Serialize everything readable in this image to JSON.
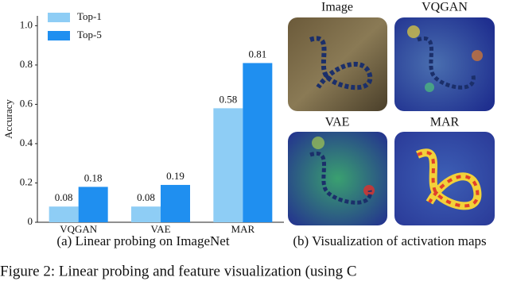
{
  "chart_data": {
    "type": "bar",
    "ylabel": "Accuracy",
    "categories": [
      "VQGAN",
      "VAE",
      "MAR"
    ],
    "series": [
      {
        "name": "Top-1",
        "color": "#8ecdf5",
        "values": [
          0.08,
          0.08,
          0.58
        ]
      },
      {
        "name": "Top-5",
        "color": "#1f8ff0",
        "values": [
          0.18,
          0.19,
          0.81
        ]
      }
    ],
    "ylim": [
      0,
      1.05
    ],
    "yticks": [
      0,
      0.2,
      0.4,
      0.6,
      0.8,
      {
        "value": 1,
        "label": "1.0"
      }
    ],
    "legend": "upper left",
    "grid": false
  },
  "figure": {
    "caption_a": "(a) Linear probing on ImageNet",
    "caption_b": "(b) Visualization of activation maps",
    "panels": [
      "Image",
      "VQGAN",
      "VAE",
      "MAR"
    ],
    "figure_caption": "Figure 2: Linear probing and feature visualization (using C"
  }
}
